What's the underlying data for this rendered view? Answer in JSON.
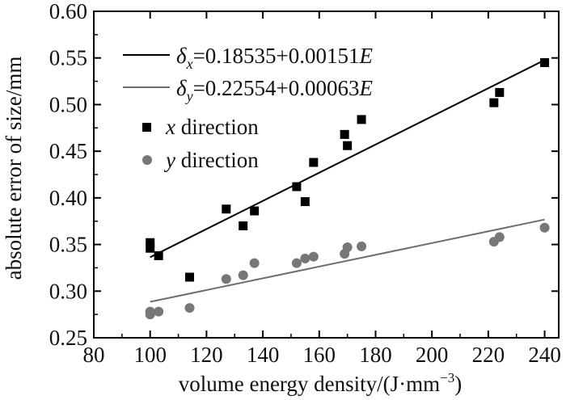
{
  "chart_data": {
    "type": "scatter",
    "xlabel": "volume energy density/(J·mm⁻³)",
    "ylabel": "absolute error of size/mm",
    "xlim": [
      80,
      245
    ],
    "ylim": [
      0.25,
      0.6
    ],
    "xticks": [
      80,
      100,
      120,
      140,
      160,
      180,
      200,
      220,
      240
    ],
    "yticks": [
      0.25,
      0.3,
      0.35,
      0.4,
      0.45,
      0.5,
      0.55,
      0.6
    ],
    "ytick_labels": [
      "0.25",
      "0.30",
      "0.35",
      "0.40",
      "0.45",
      "0.50",
      "0.55",
      "0.60"
    ],
    "grid": false,
    "legend_position": "top-left",
    "fits": [
      {
        "name": "x fit",
        "label_symbol": "δ",
        "label_subscript": "x",
        "label_equation": "=0.18535+0.00151",
        "label_variable": "E",
        "intercept": 0.18535,
        "slope": 0.00151,
        "x_range": [
          100,
          240
        ],
        "color": "#000000"
      },
      {
        "name": "y fit",
        "label_symbol": "δ",
        "label_subscript": "y",
        "label_equation": "=0.22554+0.00063",
        "label_variable": "E",
        "intercept": 0.22554,
        "slope": 0.00063,
        "x_range": [
          100,
          240
        ],
        "color": "#6e6e6e"
      }
    ],
    "series": [
      {
        "name": "x direction",
        "label_italic": "x",
        "label_rest": " direction",
        "marker": "square",
        "color": "#000000",
        "points": [
          [
            100,
            0.352
          ],
          [
            100,
            0.346
          ],
          [
            103,
            0.338
          ],
          [
            114,
            0.315
          ],
          [
            127,
            0.388
          ],
          [
            133,
            0.37
          ],
          [
            137,
            0.386
          ],
          [
            152,
            0.412
          ],
          [
            155,
            0.396
          ],
          [
            158,
            0.438
          ],
          [
            169,
            0.468
          ],
          [
            170,
            0.456
          ],
          [
            175,
            0.484
          ],
          [
            222,
            0.502
          ],
          [
            224,
            0.513
          ],
          [
            240,
            0.545
          ]
        ]
      },
      {
        "name": "y direction",
        "label_italic": "y",
        "label_rest": " direction",
        "marker": "circle",
        "color": "#777777",
        "points": [
          [
            100,
            0.278
          ],
          [
            100,
            0.275
          ],
          [
            103,
            0.278
          ],
          [
            114,
            0.282
          ],
          [
            127,
            0.313
          ],
          [
            133,
            0.317
          ],
          [
            137,
            0.33
          ],
          [
            152,
            0.33
          ],
          [
            155,
            0.335
          ],
          [
            158,
            0.337
          ],
          [
            169,
            0.34
          ],
          [
            170,
            0.347
          ],
          [
            175,
            0.348
          ],
          [
            222,
            0.353
          ],
          [
            224,
            0.358
          ],
          [
            240,
            0.368
          ]
        ]
      }
    ]
  }
}
